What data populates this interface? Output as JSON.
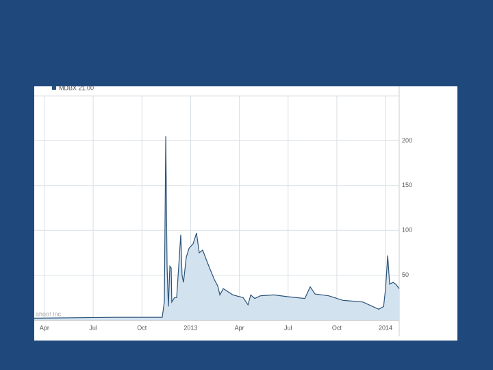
{
  "chart_data": {
    "type": "area",
    "legend": "MDBX 21.00",
    "watermark": "ahoo! Inc.",
    "x": [
      2.37,
      7.43,
      10.25,
      10.38,
      10.47,
      10.55,
      10.63,
      10.72,
      10.8,
      10.84,
      11.01,
      11.14,
      11.39,
      11.47,
      11.56,
      11.73,
      11.9,
      12.15,
      12.36,
      12.53,
      12.74,
      13.12,
      13.46,
      13.67,
      13.8,
      14.01,
      14.6,
      15.23,
      15.53,
      15.7,
      15.95,
      16.29,
      17.13,
      17.97,
      19.03,
      19.36,
      19.66,
      20.5,
      21.35,
      22.61,
      23.58,
      23.88,
      24.0,
      24.13,
      24.25,
      24.46,
      24.63,
      24.84
    ],
    "values": [
      2,
      3,
      3,
      20,
      205,
      60,
      15,
      60,
      58,
      20,
      25,
      25,
      95,
      50,
      42,
      70,
      80,
      85,
      97,
      75,
      78,
      60,
      45,
      38,
      28,
      35,
      28,
      25,
      17,
      28,
      24,
      27,
      28,
      26,
      24,
      37,
      29,
      27,
      22,
      20,
      12,
      15,
      35,
      72,
      40,
      42,
      40,
      35
    ],
    "color": "#2b5278",
    "fill": "#d3e2ef",
    "xlim": [
      2.37,
      24.84
    ],
    "xticks": [
      {
        "value": 3,
        "label": "Apr"
      },
      {
        "value": 6,
        "label": "Jul"
      },
      {
        "value": 9,
        "label": "Oct"
      },
      {
        "value": 12,
        "label": "2013"
      },
      {
        "value": 15,
        "label": "Apr"
      },
      {
        "value": 18,
        "label": "Jul"
      },
      {
        "value": 21,
        "label": "Oct"
      },
      {
        "value": 24,
        "label": "2014"
      }
    ],
    "ylim": [
      0,
      250
    ],
    "yticks": [
      50,
      100,
      150,
      200
    ],
    "grid": true
  }
}
